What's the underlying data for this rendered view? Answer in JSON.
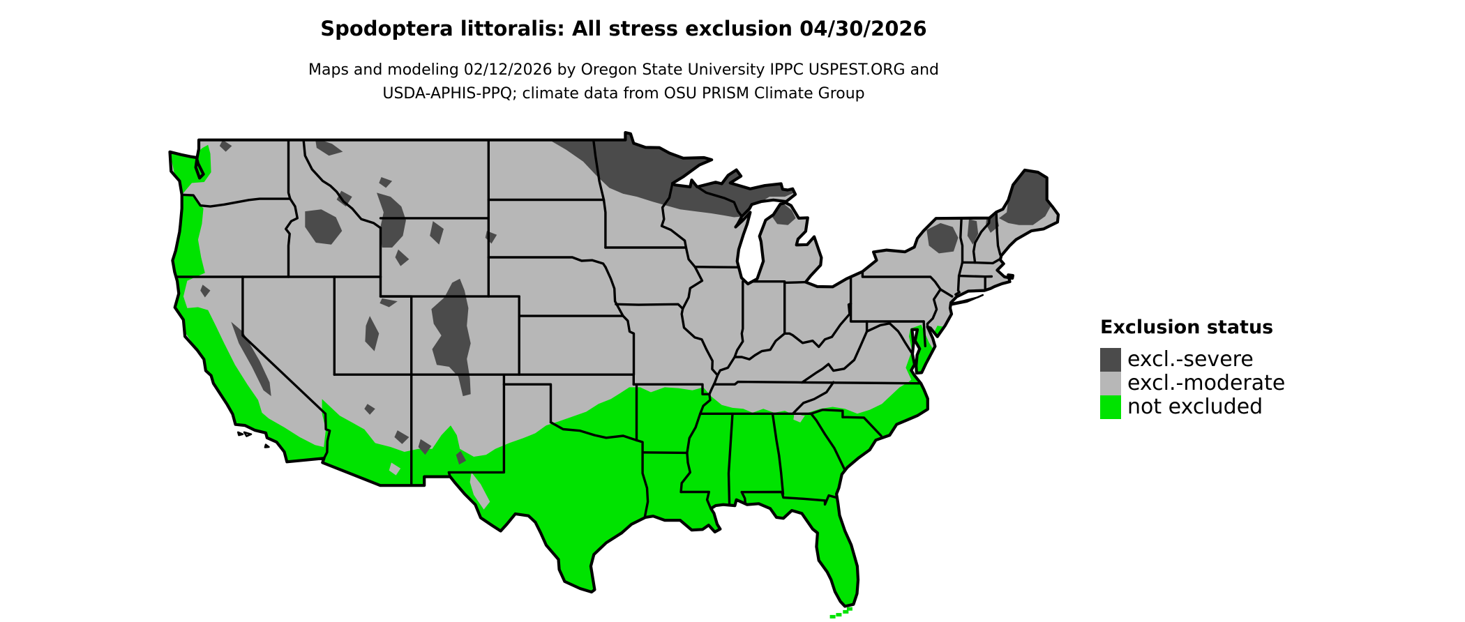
{
  "header": {
    "title": "Spodoptera littoralis: All stress exclusion 04/30/2026",
    "subtitle_line1": "Maps and modeling 02/12/2026 by Oregon State University IPPC USPEST.ORG and",
    "subtitle_line2": "USDA-APHIS-PPQ; climate data from OSU PRISM Climate Group"
  },
  "legend": {
    "title": "Exclusion status",
    "items": [
      {
        "label": "excl.-severe",
        "color": "#4B4B4B"
      },
      {
        "label": "excl.-moderate",
        "color": "#B7B7B7"
      },
      {
        "label": "not excluded",
        "color": "#00E300"
      }
    ]
  },
  "map": {
    "base_color": "#B7B7B7",
    "outline_color": "#000000",
    "water_color": "#FFFFFF"
  }
}
